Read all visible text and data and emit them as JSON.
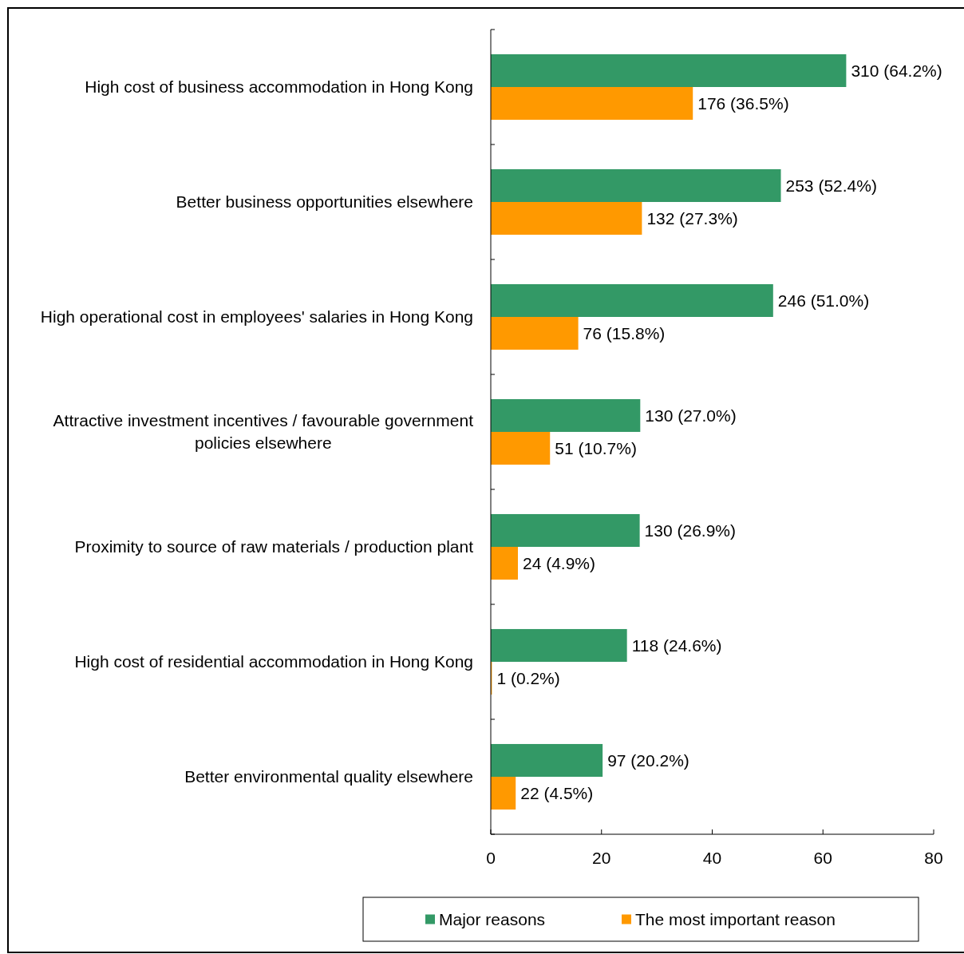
{
  "chart_data": {
    "type": "bar",
    "orientation": "horizontal",
    "categories": [
      "High cost of business accommodation in Hong Kong",
      "Better business opportunities elsewhere",
      "High operational cost in employees' salaries in Hong Kong",
      "Attractive investment incentives / favourable government policies elsewhere",
      "Proximity to source of raw materials / production plant",
      "High cost of residential accommodation in Hong Kong",
      "Better environmental quality elsewhere"
    ],
    "series": [
      {
        "name": "Major reasons",
        "color": "#339966",
        "values": [
          64.2,
          52.4,
          51.0,
          27.0,
          26.9,
          24.6,
          20.2
        ],
        "value_labels": [
          "310 (64.2%)",
          "253 (52.4%)",
          "246 (51.0%)",
          "130 (27.0%)",
          "130 (26.9%)",
          "118 (24.6%)",
          "97 (20.2%)"
        ]
      },
      {
        "name": "The most important reason",
        "color": "#ff9900",
        "values": [
          36.5,
          27.3,
          15.8,
          10.7,
          4.9,
          0.2,
          4.5
        ],
        "value_labels": [
          "176 (36.5%)",
          "132 (27.3%)",
          "76 (15.8%)",
          "51 (10.7%)",
          "24 (4.9%)",
          "1 (0.2%)",
          "22 (4.5%)"
        ]
      }
    ],
    "xlim": [
      0,
      80
    ],
    "xticks": [
      0,
      20,
      40,
      60,
      80
    ],
    "legend": "bottom"
  }
}
